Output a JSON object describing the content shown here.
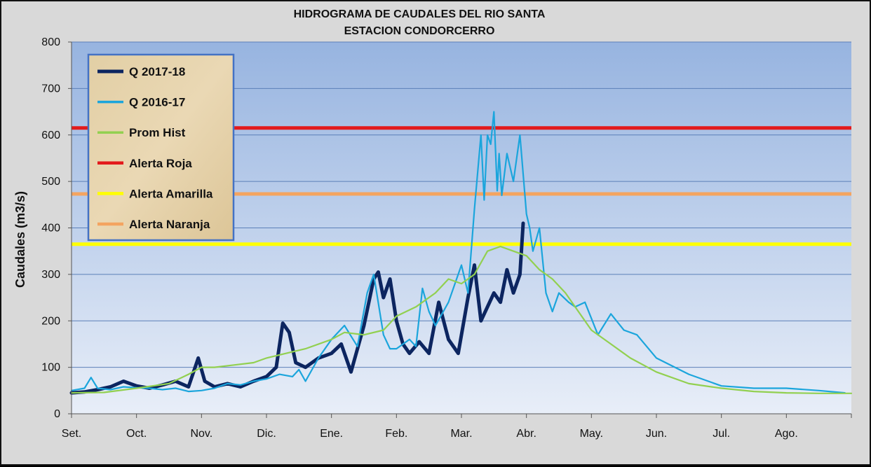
{
  "chart_data": {
    "type": "line",
    "title": "HIDROGRAMA DE CAUDALES  DEL RIO SANTA",
    "subtitle": "ESTACION CONDORCERRO",
    "ylabel": "Caudales (m3/s)",
    "xlabel": "",
    "ylim": [
      0,
      800
    ],
    "yticks": [
      0,
      100,
      200,
      300,
      400,
      500,
      600,
      700,
      800
    ],
    "months": [
      "Set.",
      "Oct.",
      "Nov.",
      "Dic.",
      "Ene.",
      "Feb.",
      "Mar.",
      "Abr.",
      "May.",
      "Jun.",
      "Jul.",
      "Ago."
    ],
    "xlim": [
      0,
      12
    ],
    "grid": true,
    "legend_position": "top-left",
    "series": [
      {
        "name": "Q 2017-18",
        "color": "#0c2560",
        "x": [
          0,
          0.2,
          0.4,
          0.6,
          0.8,
          1.0,
          1.2,
          1.4,
          1.6,
          1.8,
          1.95,
          2.05,
          2.2,
          2.4,
          2.6,
          2.8,
          3.0,
          3.15,
          3.25,
          3.35,
          3.45,
          3.6,
          3.8,
          4.0,
          4.15,
          4.3,
          4.5,
          4.65,
          4.72,
          4.8,
          4.9,
          5.0,
          5.1,
          5.2,
          5.35,
          5.5,
          5.65,
          5.8,
          5.95,
          6.1,
          6.2,
          6.3,
          6.4,
          6.5,
          6.6,
          6.7,
          6.8,
          6.9,
          6.95
        ],
        "values": [
          45,
          47,
          52,
          58,
          70,
          60,
          55,
          62,
          70,
          58,
          120,
          70,
          58,
          65,
          58,
          70,
          80,
          100,
          195,
          175,
          110,
          100,
          120,
          130,
          150,
          90,
          190,
          290,
          305,
          250,
          290,
          200,
          150,
          130,
          155,
          130,
          240,
          160,
          130,
          250,
          320,
          200,
          230,
          260,
          240,
          310,
          260,
          300,
          410
        ]
      },
      {
        "name": "Q 2016-17",
        "color": "#1ba5dc",
        "x": [
          0,
          0.2,
          0.3,
          0.4,
          0.6,
          0.8,
          1.0,
          1.2,
          1.4,
          1.6,
          1.8,
          2.0,
          2.2,
          2.4,
          2.6,
          2.8,
          3.0,
          3.2,
          3.4,
          3.5,
          3.6,
          3.8,
          4.0,
          4.2,
          4.4,
          4.55,
          4.65,
          4.8,
          4.9,
          5.0,
          5.2,
          5.3,
          5.4,
          5.5,
          5.6,
          5.8,
          6.0,
          6.1,
          6.2,
          6.3,
          6.35,
          6.4,
          6.45,
          6.5,
          6.55,
          6.58,
          6.62,
          6.7,
          6.8,
          6.9,
          7.0,
          7.05,
          7.1,
          7.2,
          7.3,
          7.4,
          7.5,
          7.65,
          7.75,
          7.9,
          8.1,
          8.3,
          8.5,
          8.7,
          9.0,
          9.5,
          10,
          10.5,
          11,
          11.5,
          11.9
        ],
        "values": [
          50,
          55,
          78,
          55,
          52,
          58,
          56,
          55,
          52,
          55,
          48,
          50,
          55,
          65,
          62,
          70,
          75,
          85,
          80,
          95,
          70,
          120,
          160,
          190,
          145,
          260,
          300,
          170,
          140,
          140,
          160,
          145,
          270,
          220,
          190,
          240,
          320,
          260,
          440,
          600,
          460,
          600,
          580,
          650,
          480,
          560,
          470,
          560,
          500,
          600,
          430,
          400,
          350,
          400,
          260,
          220,
          260,
          240,
          230,
          240,
          170,
          215,
          180,
          170,
          120,
          85,
          60,
          55,
          55,
          50,
          45
        ]
      },
      {
        "name": "Prom Hist",
        "color": "#92d050",
        "x": [
          0,
          0.5,
          1.0,
          1.5,
          1.8,
          2.0,
          2.2,
          2.5,
          2.8,
          3.0,
          3.3,
          3.6,
          4.0,
          4.2,
          4.5,
          4.8,
          5.0,
          5.3,
          5.6,
          5.8,
          6.0,
          6.2,
          6.4,
          6.6,
          6.8,
          7.0,
          7.2,
          7.4,
          7.6,
          7.8,
          8.0,
          8.3,
          8.6,
          9.0,
          9.5,
          10,
          10.5,
          11,
          11.5,
          12
        ],
        "values": [
          45,
          46,
          55,
          65,
          85,
          100,
          100,
          105,
          110,
          120,
          130,
          140,
          160,
          175,
          170,
          180,
          210,
          230,
          260,
          290,
          280,
          300,
          350,
          360,
          350,
          340,
          310,
          290,
          260,
          220,
          180,
          150,
          120,
          90,
          65,
          55,
          48,
          45,
          44,
          44
        ]
      }
    ],
    "thresholds": [
      {
        "name": "Alerta Roja",
        "value": 615,
        "color": "#e31a1c"
      },
      {
        "name": "Alerta Amarilla",
        "value": 365,
        "color": "#ffff00"
      },
      {
        "name": "Alerta Naranja",
        "value": 473,
        "color": "#f4a460"
      }
    ]
  }
}
